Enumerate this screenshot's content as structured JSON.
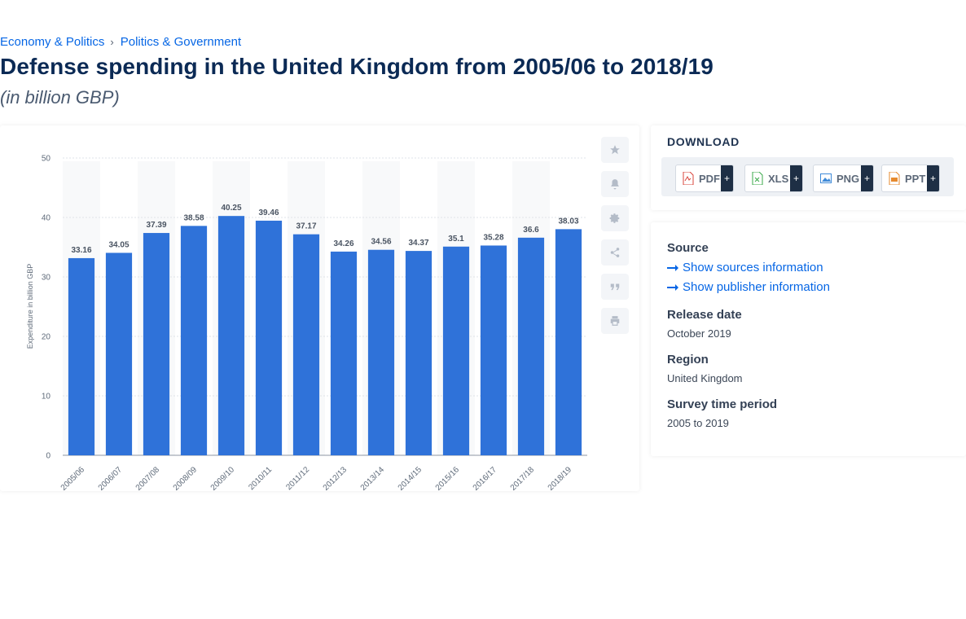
{
  "breadcrumb": {
    "item1": "Economy & Politics",
    "separator": "›",
    "item2": "Politics & Government"
  },
  "page": {
    "title": "Defense spending in the United Kingdom from 2005/06 to 2018/19",
    "subtitle": "(in billion GBP)"
  },
  "toolbar": {
    "icons": [
      "star-icon",
      "bell-icon",
      "gear-icon",
      "share-icon",
      "quote-icon",
      "print-icon"
    ]
  },
  "download": {
    "title": "DOWNLOAD",
    "plus": "+",
    "formats": [
      {
        "label": "PDF",
        "icon": "pdf-file-icon",
        "color": "#d9443b"
      },
      {
        "label": "XLS",
        "icon": "xls-file-icon",
        "color": "#3aa84a"
      },
      {
        "label": "PNG",
        "icon": "png-file-icon",
        "color": "#3f8ad8"
      },
      {
        "label": "PPT",
        "icon": "ppt-file-icon",
        "color": "#e68a2e"
      }
    ]
  },
  "info": {
    "source_label": "Source",
    "show_sources": "Show sources information",
    "show_publisher": "Show publisher information",
    "release_label": "Release date",
    "release_value": "October 2019",
    "region_label": "Region",
    "region_value": "United Kingdom",
    "survey_label": "Survey time period",
    "survey_value": "2005 to 2019"
  },
  "chart_data": {
    "type": "bar",
    "categories": [
      "2005/06",
      "2006/07",
      "2007/08",
      "2008/09",
      "2009/10",
      "2010/11",
      "2011/12",
      "2012/13",
      "2013/14",
      "2014/15",
      "2015/16",
      "2016/17",
      "2017/18",
      "2018/19"
    ],
    "values": [
      33.16,
      34.05,
      37.39,
      38.58,
      40.25,
      39.46,
      37.17,
      34.26,
      34.56,
      34.37,
      35.1,
      35.28,
      36.6,
      38.03
    ],
    "value_labels": [
      "33.16",
      "34.05",
      "37.39",
      "38.58",
      "40.25",
      "39.46",
      "37.17",
      "34.26",
      "34.56",
      "34.37",
      "35.1",
      "35.28",
      "36.6",
      "38.03"
    ],
    "ylabel": "Expenditure in billion GBP",
    "ylim": [
      0,
      50
    ],
    "yticks": [
      0,
      10,
      20,
      30,
      40,
      50
    ],
    "grid": true,
    "bar_color": "#2f72d9",
    "band_color": "#f8f9fa"
  }
}
